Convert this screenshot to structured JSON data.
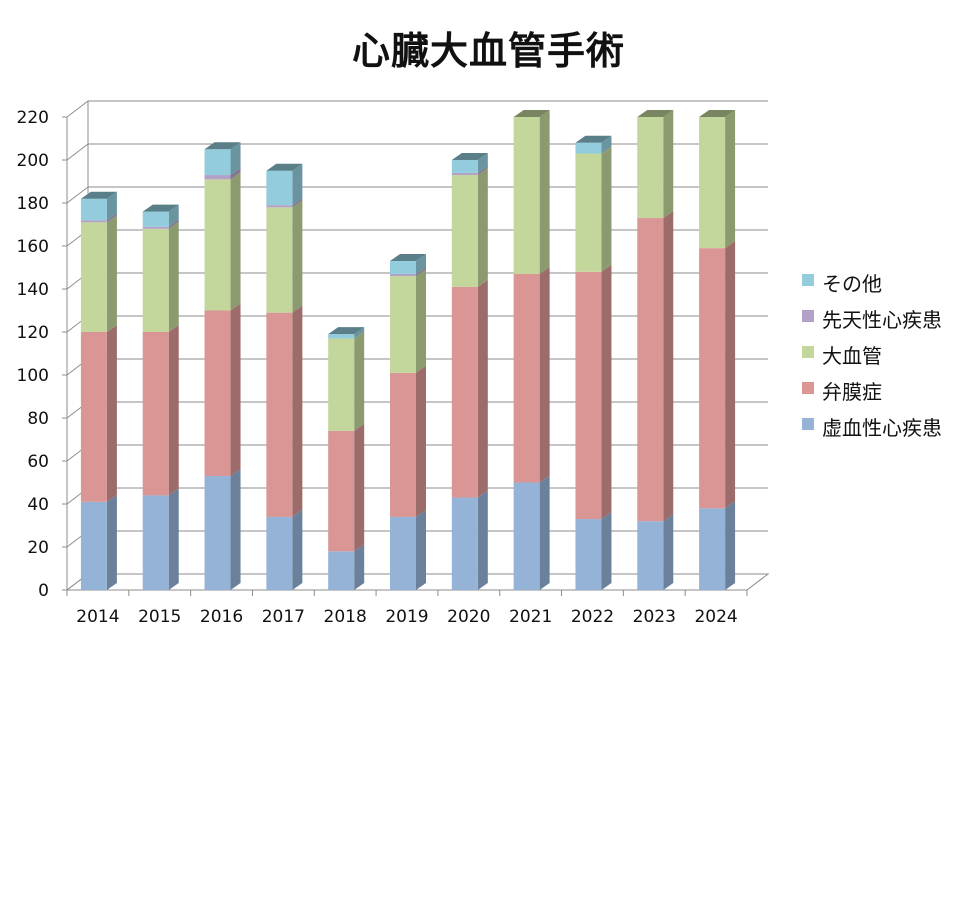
{
  "chart_data": {
    "type": "bar",
    "stacked": true,
    "title": "心臓大血管手術",
    "xlabel": "",
    "ylabel": "",
    "categories": [
      "2014",
      "2015",
      "2016",
      "2017",
      "2018",
      "2019",
      "2020",
      "2021",
      "2022",
      "2023",
      "2024"
    ],
    "ylim": [
      0,
      220
    ],
    "yticks": [
      0,
      20,
      40,
      60,
      80,
      100,
      120,
      140,
      160,
      180,
      200,
      220
    ],
    "grid": true,
    "legend_position": "right",
    "series": [
      {
        "name": "虚血性心疾患",
        "color": "#95b3d7",
        "values": [
          41,
          44,
          53,
          34,
          18,
          34,
          43,
          50,
          33,
          32,
          38
        ]
      },
      {
        "name": "弁膜症",
        "color": "#d99694",
        "values": [
          79,
          76,
          77,
          95,
          56,
          67,
          98,
          97,
          115,
          141,
          121
        ]
      },
      {
        "name": "大血管",
        "color": "#c3d69b",
        "values": [
          51,
          48,
          61,
          49,
          43,
          45,
          52,
          73,
          55,
          47,
          61
        ]
      },
      {
        "name": "先天性心疾患",
        "color": "#b3a2c7",
        "values": [
          1,
          1,
          2,
          1,
          0,
          1,
          1,
          0,
          0,
          0,
          0
        ]
      },
      {
        "name": "その他",
        "color": "#93cddd",
        "values": [
          10,
          7,
          12,
          16,
          2,
          6,
          6,
          0,
          5,
          0,
          0
        ]
      }
    ]
  }
}
